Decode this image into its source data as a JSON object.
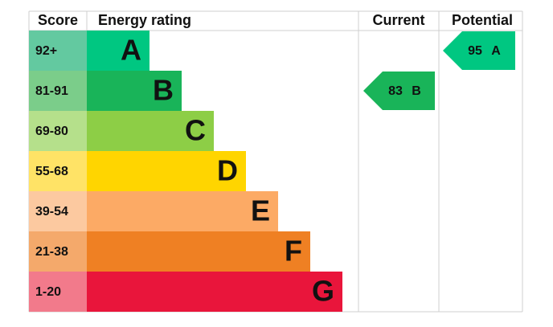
{
  "header": {
    "score": "Score",
    "rating": "Energy rating",
    "current": "Current",
    "potential": "Potential"
  },
  "bands": [
    {
      "range": "92+",
      "letter": "A",
      "color": "#00c781",
      "score_color": "#63c9a0"
    },
    {
      "range": "81-91",
      "letter": "B",
      "color": "#19b459",
      "score_color": "#7bcd8a"
    },
    {
      "range": "69-80",
      "letter": "C",
      "color": "#8dce46",
      "score_color": "#b5e08b"
    },
    {
      "range": "55-68",
      "letter": "D",
      "color": "#ffd500",
      "score_color": "#ffe366"
    },
    {
      "range": "39-54",
      "letter": "E",
      "color": "#fcaa65",
      "score_color": "#fcc9a0"
    },
    {
      "range": "21-38",
      "letter": "F",
      "color": "#ef8023",
      "score_color": "#f4a96b"
    },
    {
      "range": "1-20",
      "letter": "G",
      "color": "#e9153b",
      "score_color": "#f27a8b"
    }
  ],
  "current": {
    "score": 83,
    "letter": "B"
  },
  "potential": {
    "score": 95,
    "letter": "A"
  }
}
